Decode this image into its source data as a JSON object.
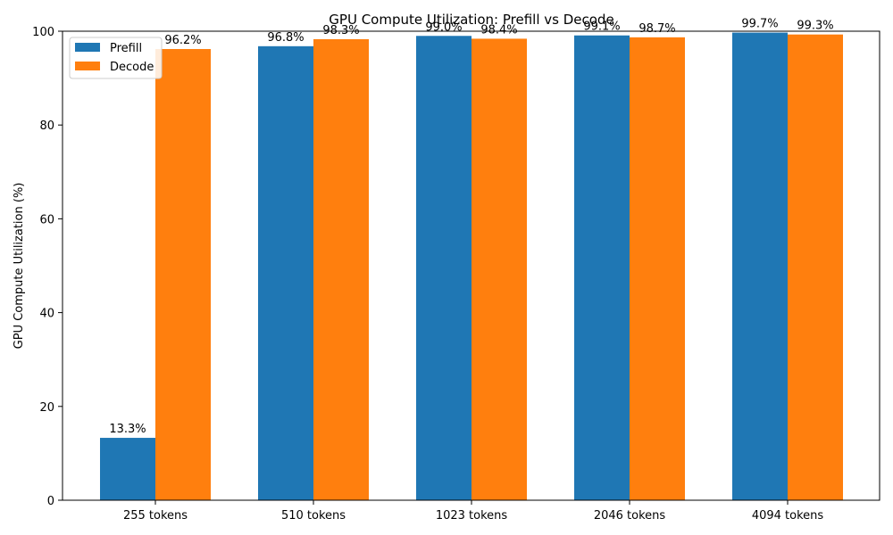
{
  "chart_data": {
    "type": "bar",
    "title": "GPU Compute Utilization: Prefill vs Decode",
    "xlabel": "",
    "ylabel": "GPU Compute Utilization (%)",
    "categories": [
      "255 tokens",
      "510 tokens",
      "1023 tokens",
      "2046 tokens",
      "4094 tokens"
    ],
    "series": [
      {
        "name": "Prefill",
        "color": "#1f77b4",
        "values": [
          13.3,
          96.8,
          99.0,
          99.1,
          99.7
        ],
        "labels": [
          "13.3%",
          "96.8%",
          "99.0%",
          "99.1%",
          "99.7%"
        ]
      },
      {
        "name": "Decode",
        "color": "#ff7f0e",
        "values": [
          96.2,
          98.3,
          98.4,
          98.7,
          99.3
        ],
        "labels": [
          "96.2%",
          "98.3%",
          "98.4%",
          "98.7%",
          "99.3%"
        ]
      }
    ],
    "ylim": [
      0,
      100
    ],
    "yticks": [
      0,
      20,
      40,
      60,
      80,
      100
    ],
    "ytick_labels": [
      "0",
      "20",
      "40",
      "60",
      "80",
      "100"
    ],
    "grid": false,
    "legend_position": "top-left"
  }
}
